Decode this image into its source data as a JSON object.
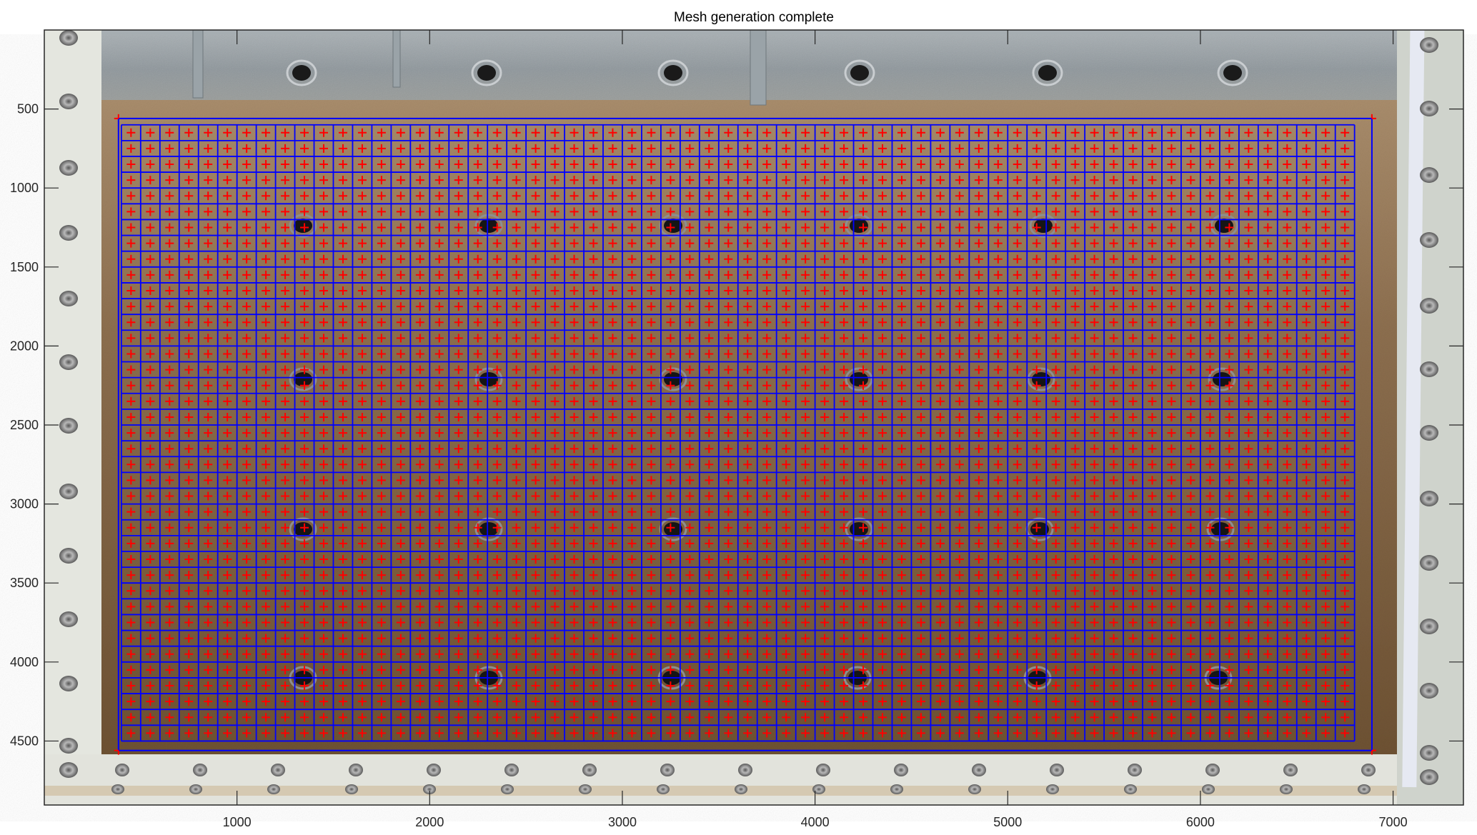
{
  "figure": {
    "title": "Mesh generation complete"
  },
  "chart_data": {
    "type": "scatter",
    "title": "Mesh generation complete",
    "xlabel": "",
    "ylabel": "",
    "xlim": [
      0,
      7365
    ],
    "ylim": [
      0,
      4905
    ],
    "y_direction": "reverse",
    "background": "photograph of sand-filled test tank with bolted frame and measuring tape",
    "xticks": [
      1000,
      2000,
      3000,
      4000,
      5000,
      6000,
      7000
    ],
    "yticks": [
      500,
      1000,
      1500,
      2000,
      2500,
      3000,
      3500,
      4000,
      4500
    ],
    "xtick_labels": [
      "1000",
      "2000",
      "3000",
      "4000",
      "5000",
      "6000",
      "7000"
    ],
    "ytick_labels": [
      "500",
      "1000",
      "1500",
      "2000",
      "2500",
      "3000",
      "3500",
      "4000",
      "4500"
    ],
    "grid": false,
    "boundary": {
      "x": [
        385,
        6890
      ],
      "y": [
        560,
        4560
      ],
      "color": "#0000ff",
      "corner_marker_color": "#ff0000"
    },
    "mesh": {
      "x_range": [
        400,
        6800
      ],
      "y_range": [
        600,
        4500
      ],
      "spacing": 100,
      "line_color": "#0000ff",
      "node_marker": "+",
      "node_color": "#ff0000",
      "nodes_at": "element centers"
    },
    "colors": {
      "mesh": "#0000ff",
      "nodes": "#ff0000",
      "axes": "#262626"
    }
  }
}
